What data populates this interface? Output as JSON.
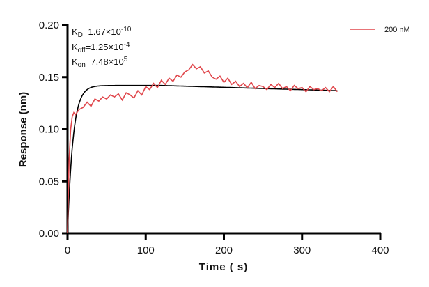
{
  "chart_data": {
    "type": "line",
    "xlabel": "Time ( s)",
    "ylabel": "Response (nm)",
    "xlim": [
      0,
      400
    ],
    "ylim": [
      0,
      0.2
    ],
    "xticks": [
      "0",
      "100",
      "200",
      "300",
      "400"
    ],
    "yticks": [
      "0.00",
      "0.05",
      "0.10",
      "0.15",
      "0.20"
    ],
    "grid": false,
    "legend_position": "top-right",
    "annotations": {
      "kd": {
        "sym": "K",
        "sub": "D",
        "val": "=1.67×10",
        "exp": "-10"
      },
      "koff": {
        "sym": "K",
        "sub": "off",
        "val": "=1.25×10",
        "exp": "-4"
      },
      "kon": {
        "sym": "K",
        "sub": "on",
        "val": "=7.48×10",
        "exp": "5"
      }
    },
    "series": [
      {
        "name": "200 nM",
        "color": "#e0474c",
        "x": [
          0,
          2,
          4,
          6,
          8,
          10,
          15,
          20,
          25,
          30,
          35,
          40,
          45,
          50,
          55,
          60,
          65,
          70,
          75,
          80,
          85,
          90,
          95,
          100,
          105,
          110,
          115,
          120,
          125,
          130,
          135,
          140,
          145,
          150,
          155,
          160,
          165,
          170,
          175,
          180,
          185,
          190,
          195,
          200,
          205,
          210,
          215,
          220,
          225,
          230,
          235,
          240,
          245,
          250,
          255,
          260,
          265,
          270,
          275,
          280,
          285,
          290,
          295,
          300,
          305,
          310,
          315,
          320,
          325,
          330,
          335,
          340,
          345
        ],
        "y": [
          0,
          0.07,
          0.1,
          0.112,
          0.116,
          0.114,
          0.119,
          0.121,
          0.126,
          0.122,
          0.129,
          0.127,
          0.131,
          0.129,
          0.133,
          0.131,
          0.134,
          0.128,
          0.135,
          0.133,
          0.13,
          0.137,
          0.133,
          0.141,
          0.138,
          0.144,
          0.14,
          0.147,
          0.143,
          0.149,
          0.146,
          0.152,
          0.15,
          0.155,
          0.157,
          0.162,
          0.158,
          0.16,
          0.154,
          0.156,
          0.15,
          0.148,
          0.151,
          0.145,
          0.149,
          0.143,
          0.146,
          0.141,
          0.144,
          0.14,
          0.145,
          0.139,
          0.142,
          0.141,
          0.138,
          0.143,
          0.14,
          0.144,
          0.139,
          0.141,
          0.137,
          0.142,
          0.139,
          0.14,
          0.136,
          0.141,
          0.138,
          0.139,
          0.137,
          0.14,
          0.136,
          0.141,
          0.136
        ]
      }
    ],
    "fit": {
      "color": "#000000",
      "plateau": 0.142,
      "end_value": 0.137,
      "end_time": 345
    }
  }
}
